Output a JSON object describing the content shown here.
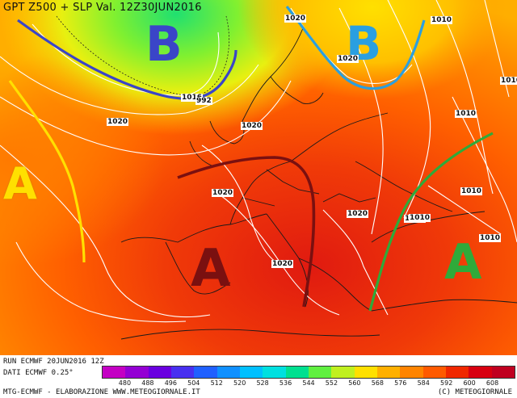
{
  "title": "GPT Z500 + SLP Val. 12Z30JUN2016",
  "footer": {
    "run": "RUN ECMWF  20JUN2016  12Z",
    "dati": "DATI ECMWF  0.25°",
    "credits_left": "MTG-ECMWF - ELABORAZIONE WWW.METEOGIORNALE.IT",
    "credits_right": "(C) METEOGIORNALE"
  },
  "legend": {
    "values": [
      "480",
      "488",
      "496",
      "504",
      "512",
      "520",
      "528",
      "536",
      "544",
      "552",
      "560",
      "568",
      "576",
      "584",
      "592",
      "600",
      "608"
    ],
    "colors": [
      "#c400c4",
      "#9400d4",
      "#6a00e0",
      "#4830f0",
      "#2060ff",
      "#1090ff",
      "#00c0ff",
      "#00e0e0",
      "#00e090",
      "#60f040",
      "#c0f020",
      "#ffe000",
      "#ffb000",
      "#ff8400",
      "#ff5a00",
      "#f02800",
      "#d80010",
      "#c00020"
    ]
  },
  "labels": {
    "high_west": "A",
    "high_central": "A",
    "high_east": "A",
    "low_north": "B",
    "low_northeast": "B",
    "isobars": [
      "1020",
      "1016",
      "992",
      "1020",
      "1020",
      "1020",
      "1020",
      "1020",
      "1020",
      "1010",
      "1010",
      "1010",
      "1010",
      "1010",
      "1010",
      "1010"
    ]
  },
  "colors": {
    "high_west": "#ffe000",
    "high_central": "#7a1010",
    "high_east": "#2faa3a",
    "low_north": "#3a45c8",
    "low_northeast": "#2a9fe0"
  }
}
